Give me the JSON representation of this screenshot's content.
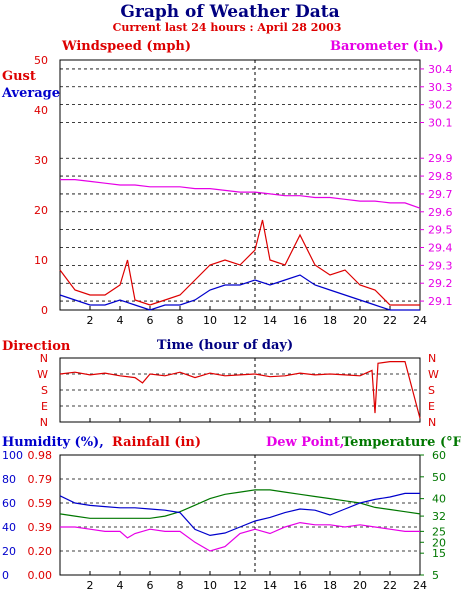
{
  "colors": {
    "navy": "#000080",
    "red": "#dd0000",
    "magenta": "#e600e6",
    "blue": "#0000cc",
    "green": "#007700",
    "grid": "#000000"
  },
  "header": {
    "title": "Graph of Weather Data",
    "subtitle": "Current last 24 hours : April 28 2003"
  },
  "chart_data": [
    {
      "id": "wind",
      "type": "line",
      "title": "Graph of Weather Data",
      "subtitle": "Current last 24 hours : April 28 2003",
      "labels": {
        "left_top": "Windspeed (mph)",
        "right_top": "Barometer (in.)",
        "gust": "Gust",
        "average": "Average",
        "xlabel": "Time (hour of day)"
      },
      "xlim": [
        0,
        24
      ],
      "xticks": [
        "2",
        "4",
        "6",
        "8",
        "10",
        "12",
        "14",
        "16",
        "18",
        "20",
        "22",
        "24"
      ],
      "ylim_left": [
        0,
        50
      ],
      "yticks_left": [
        "0",
        "10",
        "20",
        "30",
        "40",
        "50"
      ],
      "ylim_right": [
        29.05,
        30.45
      ],
      "yticks_right": [
        "29.1",
        "29.2",
        "29.3",
        "29.4",
        "29.5",
        "29.6",
        "29.7",
        "29.8",
        "29.9",
        "30.1",
        "30.2",
        "30.3",
        "30.4"
      ],
      "grid": true,
      "series": [
        {
          "name": "Gust",
          "color": "#dd0000",
          "x": [
            0,
            1,
            2,
            3,
            4,
            4.5,
            5,
            6,
            7,
            8,
            9,
            10,
            11,
            12,
            13,
            13.5,
            14,
            15,
            16,
            17,
            18,
            19,
            20,
            21,
            22,
            23,
            24
          ],
          "y": [
            8,
            4,
            3,
            3,
            5,
            10,
            2,
            1,
            2,
            3,
            6,
            9,
            10,
            9,
            12,
            18,
            10,
            9,
            15,
            9,
            7,
            8,
            5,
            4,
            1,
            1,
            1
          ]
        },
        {
          "name": "Average",
          "color": "#0000cc",
          "x": [
            0,
            1,
            2,
            3,
            4,
            5,
            6,
            7,
            8,
            9,
            10,
            11,
            12,
            13,
            14,
            15,
            16,
            17,
            18,
            19,
            20,
            21,
            22,
            23,
            24
          ],
          "y": [
            3,
            2,
            1,
            1,
            2,
            1,
            0,
            1,
            1,
            2,
            4,
            5,
            5,
            6,
            5,
            6,
            7,
            5,
            4,
            3,
            2,
            1,
            0,
            0,
            0
          ]
        },
        {
          "name": "Barometer",
          "axis": "right",
          "color": "#e600e6",
          "x": [
            0,
            1,
            2,
            3,
            4,
            5,
            6,
            7,
            8,
            9,
            10,
            11,
            12,
            13,
            14,
            15,
            16,
            17,
            18,
            19,
            20,
            21,
            22,
            23,
            24
          ],
          "y": [
            29.78,
            29.78,
            29.77,
            29.76,
            29.75,
            29.75,
            29.74,
            29.74,
            29.74,
            29.73,
            29.73,
            29.72,
            29.71,
            29.71,
            29.7,
            29.69,
            29.69,
            29.68,
            29.68,
            29.67,
            29.66,
            29.66,
            29.65,
            29.65,
            29.62
          ]
        }
      ]
    },
    {
      "id": "direction",
      "type": "line",
      "labels": {
        "title": "Direction"
      },
      "xlim": [
        0,
        24
      ],
      "ycategories": [
        "N",
        "W",
        "S",
        "E",
        "N"
      ],
      "grid": true,
      "series": [
        {
          "name": "Direction",
          "color": "#dd0000",
          "x": [
            0,
            1,
            2,
            3,
            4,
            5,
            5.5,
            6,
            7,
            8,
            9,
            10,
            11,
            12,
            13,
            14,
            15,
            16,
            17,
            18,
            19,
            20,
            20.8,
            21,
            21.2,
            22,
            23,
            24
          ],
          "y": [
            270,
            280,
            265,
            275,
            260,
            250,
            220,
            270,
            260,
            280,
            250,
            275,
            260,
            265,
            270,
            255,
            260,
            275,
            265,
            270,
            265,
            260,
            290,
            50,
            330,
            340,
            340,
            20
          ]
        }
      ]
    },
    {
      "id": "humidity",
      "type": "line",
      "labels": {
        "humidity": "Humidity (%),",
        "rainfall": "Rainfall (in)",
        "dew_point": "Dew Point,",
        "temperature": "Temperature (°F)"
      },
      "xlim": [
        0,
        24
      ],
      "xticks": [
        "2",
        "4",
        "6",
        "8",
        "10",
        "12",
        "14",
        "16",
        "18",
        "20",
        "22",
        "24"
      ],
      "yticks_humidity": [
        "0",
        "20",
        "40",
        "60",
        "80",
        "100"
      ],
      "yticks_rainfall": [
        "0.00",
        "0.20",
        "0.39",
        "0.59",
        "0.79",
        "0.98"
      ],
      "ylim_temperature": [
        5,
        60
      ],
      "yticks_temperature": [
        "5",
        "15",
        "20",
        "25",
        "32",
        "40",
        "50",
        "60"
      ],
      "grid": true,
      "series": [
        {
          "name": "Temperature",
          "color": "#007700",
          "x": [
            0,
            1,
            2,
            3,
            4,
            5,
            6,
            7,
            8,
            9,
            10,
            11,
            12,
            13,
            14,
            15,
            16,
            17,
            18,
            19,
            20,
            21,
            22,
            23,
            24
          ],
          "y": [
            33,
            32,
            31,
            31,
            31,
            31,
            31,
            32,
            34,
            37,
            40,
            42,
            43,
            44,
            44,
            43,
            42,
            41,
            40,
            39,
            38,
            36,
            35,
            34,
            33
          ]
        },
        {
          "name": "Humidity",
          "color": "#0000cc",
          "x": [
            0,
            1,
            2,
            3,
            4,
            5,
            6,
            7,
            8,
            9,
            10,
            11,
            12,
            13,
            14,
            15,
            16,
            17,
            18,
            19,
            20,
            21,
            22,
            23,
            24
          ],
          "y": [
            66,
            60,
            58,
            57,
            56,
            56,
            55,
            54,
            52,
            38,
            33,
            35,
            40,
            45,
            48,
            52,
            55,
            54,
            50,
            55,
            60,
            63,
            65,
            68,
            68
          ]
        },
        {
          "name": "Dew Point",
          "color": "#e600e6",
          "x": [
            0,
            1,
            2,
            3,
            4,
            4.5,
            5,
            6,
            7,
            8,
            9,
            10,
            11,
            12,
            13,
            14,
            15,
            16,
            17,
            18,
            19,
            20,
            21,
            22,
            23,
            24
          ],
          "y": [
            27,
            27,
            26,
            25,
            25,
            22,
            24,
            26,
            25,
            25,
            20,
            16,
            18,
            24,
            26,
            24,
            27,
            29,
            28,
            28,
            27,
            28,
            27,
            26,
            25,
            25
          ]
        }
      ]
    }
  ]
}
